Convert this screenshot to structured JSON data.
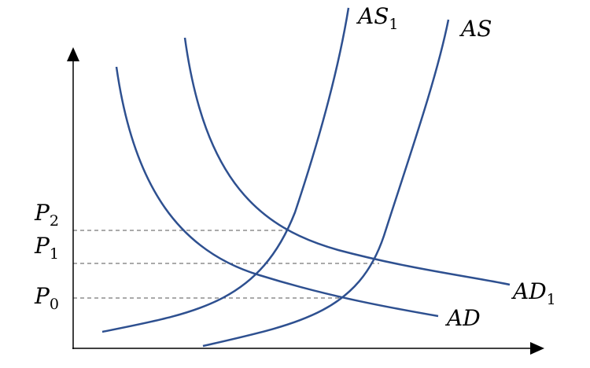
{
  "colors": {
    "curve": "#2E5090",
    "axis": "#000000",
    "guide": "#2E5090"
  },
  "curves": {
    "ad": {
      "base": "AD",
      "sub": ""
    },
    "ad1": {
      "base": "AD",
      "sub": "1"
    },
    "as": {
      "base": "AS",
      "sub": ""
    },
    "as1": {
      "base": "AS",
      "sub": "1"
    }
  },
  "price_levels": {
    "p0": {
      "base": "P",
      "sub": "0"
    },
    "p1": {
      "base": "P",
      "sub": "1"
    },
    "p2": {
      "base": "P",
      "sub": "2"
    }
  }
}
